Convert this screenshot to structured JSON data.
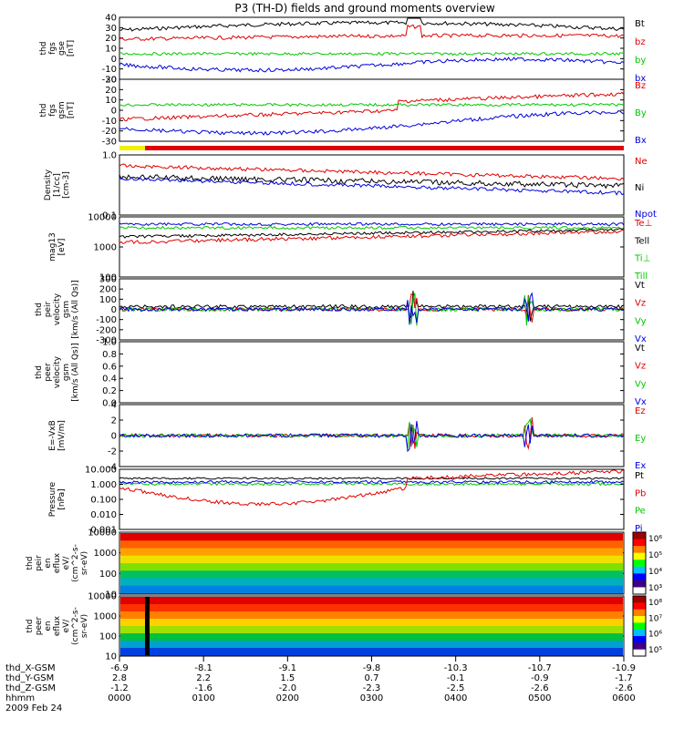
{
  "title": "P3 (TH-D) fields and ground moments overview",
  "colors": {
    "black": "#000000",
    "red": "#e00000",
    "green": "#00c800",
    "blue": "#0000e0",
    "yellow": "#f0f000"
  },
  "panels": [
    {
      "ylabel": [
        "thd",
        "fgs",
        "gse",
        "[nT]"
      ],
      "yticks": [
        "40",
        "30",
        "20",
        "10",
        "0",
        "-10",
        "-20"
      ],
      "legend": [
        {
          "t": "Bt",
          "c": "black"
        },
        {
          "t": "bz",
          "c": "red"
        },
        {
          "t": "by",
          "c": "green"
        },
        {
          "t": "bx",
          "c": "blue"
        }
      ]
    },
    {
      "ylabel": [
        "thd",
        "fgs",
        "gsm",
        "[nT]"
      ],
      "yticks": [
        "30",
        "20",
        "10",
        "0",
        "-10",
        "-20",
        "-30"
      ],
      "legend": [
        {
          "t": "Bz",
          "c": "red"
        },
        {
          "t": "By",
          "c": "green"
        },
        {
          "t": "Bx",
          "c": "blue"
        }
      ]
    },
    {
      "ylabel": [
        "Density",
        "[1/cc]",
        "[cm-3]"
      ],
      "yticks": [
        "1.0",
        "0.1"
      ],
      "legend": [
        {
          "t": "Ne",
          "c": "red"
        },
        {
          "t": "Ni",
          "c": "black"
        },
        {
          "t": "Npot",
          "c": "blue"
        }
      ]
    },
    {
      "ylabel": [
        "mag13",
        "[eV]"
      ],
      "yticks": [
        "10000",
        "1000",
        "100"
      ],
      "legend": [
        {
          "t": "Te⊥",
          "c": "red"
        },
        {
          "t": "Tell",
          "c": "black"
        },
        {
          "t": "Ti⊥",
          "c": "green"
        },
        {
          "t": "Till",
          "c": "green"
        }
      ]
    },
    {
      "ylabel": [
        "thd",
        "peir",
        "velocity",
        "gsm",
        "[km/s (All Qs)]"
      ],
      "yticks": [
        "300",
        "200",
        "100",
        "0",
        "-100",
        "-200",
        "-300"
      ],
      "legend": [
        {
          "t": "Vt",
          "c": "black"
        },
        {
          "t": "Vz",
          "c": "red"
        },
        {
          "t": "Vy",
          "c": "green"
        },
        {
          "t": "Vx",
          "c": "blue"
        }
      ]
    },
    {
      "ylabel": [
        "thd",
        "peer",
        "velocity",
        "gsm",
        "[km/s (All Qs)]"
      ],
      "yticks": [
        "1.0",
        "0.8",
        "0.6",
        "0.4",
        "0.2",
        "0.0"
      ],
      "legend": [
        {
          "t": "Vt",
          "c": "black"
        },
        {
          "t": "Vz",
          "c": "red"
        },
        {
          "t": "Vy",
          "c": "green"
        },
        {
          "t": "Vx",
          "c": "blue"
        }
      ]
    },
    {
      "ylabel": [
        "E=-VxB",
        "[mV/m]"
      ],
      "yticks": [
        "4",
        "2",
        "0",
        "-2",
        "-4"
      ],
      "legend": [
        {
          "t": "Ez",
          "c": "red"
        },
        {
          "t": "Ey",
          "c": "green"
        },
        {
          "t": "Ex",
          "c": "blue"
        }
      ]
    },
    {
      "ylabel": [
        "Pressure",
        "[nPa]"
      ],
      "yticks": [
        "10.000",
        "1.000",
        "0.100",
        "0.010",
        "0.001"
      ],
      "legend": [
        {
          "t": "Pt",
          "c": "black"
        },
        {
          "t": "Pb",
          "c": "red"
        },
        {
          "t": "Pe",
          "c": "green"
        },
        {
          "t": "Pi",
          "c": "blue"
        }
      ]
    },
    {
      "ylabel": [
        "thd",
        "peir",
        "en",
        "eflux",
        "eV/",
        "(cm^2-s-",
        "sr-eV)"
      ],
      "yticks": [
        "10000",
        "1000",
        "100",
        "10"
      ],
      "cbticks": [
        "10⁶",
        "10⁵",
        "10⁴",
        "10³"
      ]
    },
    {
      "ylabel": [
        "thd",
        "peer",
        "en",
        "eflux",
        "eV/",
        "(cm^2-s-",
        "sr-eV)"
      ],
      "yticks": [
        "10000",
        "1000",
        "100",
        "10"
      ],
      "cbticks": [
        "10⁸",
        "10⁷",
        "10⁶",
        "10⁵"
      ]
    }
  ],
  "xaxis": {
    "labels": [
      "thd_X-GSM",
      "thd_Y-GSM",
      "thd_Z-GSM",
      "hhmm"
    ],
    "date": "2009 Feb 24",
    "columns": [
      [
        "-6.9",
        "2.8",
        "-1.2",
        "0000"
      ],
      [
        "-8.1",
        "2.2",
        "-1.6",
        "0100"
      ],
      [
        "-9.1",
        "1.5",
        "-2.0",
        "0200"
      ],
      [
        "-9.8",
        "0.7",
        "-2.3",
        "0300"
      ],
      [
        "-10.3",
        "-0.1",
        "-2.5",
        "0400"
      ],
      [
        "-10.7",
        "-0.9",
        "-2.6",
        "0500"
      ],
      [
        "-10.9",
        "-1.7",
        "-2.6",
        "0600"
      ]
    ]
  },
  "chart_data": {
    "type": "line",
    "title": "P3 (TH-D) fields and ground moments overview",
    "x": [
      "0000",
      "0100",
      "0200",
      "0300",
      "0400",
      "0500",
      "0600"
    ],
    "series": [
      {
        "name": "Bt",
        "values": [
          25,
          18,
          15,
          28,
          30,
          26,
          22
        ]
      },
      {
        "name": "bz",
        "values": [
          20,
          12,
          8,
          18,
          18,
          14,
          10
        ]
      },
      {
        "name": "by",
        "values": [
          10,
          5,
          3,
          8,
          4,
          2,
          2
        ]
      },
      {
        "name": "bx",
        "values": [
          -5,
          -5,
          -8,
          -10,
          -12,
          -6,
          -4
        ]
      },
      {
        "name": "Bz",
        "values": [
          -15,
          -5,
          -5,
          20,
          10,
          8,
          6
        ]
      },
      {
        "name": "By",
        "values": [
          10,
          5,
          3,
          5,
          4,
          3,
          2
        ]
      },
      {
        "name": "Bx",
        "values": [
          -18,
          -12,
          -10,
          -15,
          -10,
          -6,
          -10
        ]
      },
      {
        "name": "Ne",
        "values": [
          0.8,
          0.75,
          0.7,
          0.55,
          0.45,
          0.4,
          0.4
        ]
      },
      {
        "name": "Ni",
        "values": [
          0.5,
          0.45,
          0.45,
          0.5,
          0.4,
          0.35,
          0.35
        ]
      },
      {
        "name": "Npot",
        "values": [
          0.55,
          0.5,
          0.45,
          0.4,
          0.3,
          0.28,
          0.3
        ]
      }
    ]
  }
}
